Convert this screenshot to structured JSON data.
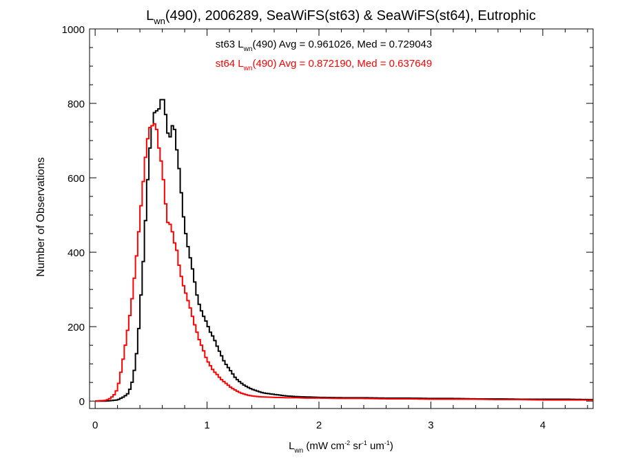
{
  "chart_data": {
    "type": "line",
    "title": {
      "prefix": "L",
      "sub": "wn",
      "rest": "(490), 2006289, SeaWiFS(st63) & SeaWiFS(st64), Eutrophic"
    },
    "xlabel": {
      "prefix": "L",
      "sub": "wn",
      "parts": [
        {
          "t": " (mW cm",
          "s": "n"
        },
        {
          "t": "-2",
          "s": "sup"
        },
        {
          "t": " sr",
          "s": "n"
        },
        {
          "t": "-1",
          "s": "sup"
        },
        {
          "t": " um",
          "s": "n"
        },
        {
          "t": "-1",
          "s": "sup"
        },
        {
          "t": ")",
          "s": "n"
        }
      ]
    },
    "ylabel": "Number of Observations",
    "xlim": [
      -0.05,
      4.45
    ],
    "ylim": [
      -20,
      1000
    ],
    "x_ticks": [
      0,
      1,
      2,
      3,
      4
    ],
    "x_ticklabels": [
      "0",
      "1",
      "2",
      "3",
      "4"
    ],
    "y_ticks": [
      0,
      200,
      400,
      600,
      800,
      1000
    ],
    "y_ticklabels": [
      "0",
      "200",
      "400",
      "600",
      "800",
      "1000"
    ],
    "x_minor_step": 0.2,
    "y_minor_step": 50,
    "grid": false,
    "bin_width": 0.02,
    "annotations": [
      {
        "label": "st63",
        "prefix": "st63 L",
        "sub": "wn",
        "rest": "(490) Avg = 0.961026, Med = 0.729043",
        "color": "#000000"
      },
      {
        "label": "st64",
        "prefix": "st64 L",
        "sub": "wn",
        "rest": "(490) Avg = 0.872190, Med = 0.637649",
        "color": "#ff0000"
      }
    ],
    "series": [
      {
        "key": "st63",
        "color": "#000000",
        "x": [
          0.0,
          0.1,
          0.2,
          0.26,
          0.3,
          0.34,
          0.38,
          0.4,
          0.42,
          0.44,
          0.46,
          0.48,
          0.5,
          0.52,
          0.54,
          0.56,
          0.58,
          0.6,
          0.62,
          0.64,
          0.66,
          0.68,
          0.7,
          0.72,
          0.74,
          0.76,
          0.78,
          0.8,
          0.82,
          0.84,
          0.86,
          0.88,
          0.9,
          0.92,
          0.94,
          0.96,
          0.98,
          1.0,
          1.02,
          1.04,
          1.06,
          1.08,
          1.1,
          1.12,
          1.14,
          1.16,
          1.18,
          1.2,
          1.22,
          1.24,
          1.26,
          1.28,
          1.3,
          1.32,
          1.36,
          1.4,
          1.45,
          1.5,
          1.6,
          1.7,
          1.8,
          1.9,
          2.0,
          2.2,
          2.4,
          2.6,
          2.8,
          3.0,
          3.2,
          3.4,
          3.6,
          3.8,
          4.0,
          4.2,
          4.44
        ],
        "y": [
          0,
          0,
          3,
          12,
          22,
          60,
          150,
          240,
          330,
          420,
          550,
          640,
          720,
          760,
          790,
          770,
          800,
          820,
          800,
          740,
          700,
          720,
          760,
          700,
          650,
          600,
          520,
          470,
          430,
          400,
          370,
          340,
          300,
          270,
          250,
          235,
          220,
          210,
          190,
          180,
          170,
          155,
          140,
          128,
          115,
          102,
          95,
          85,
          78,
          68,
          60,
          55,
          50,
          45,
          38,
          32,
          27,
          22,
          18,
          14,
          12,
          11,
          10,
          9,
          9,
          8,
          8,
          7,
          7,
          6,
          6,
          5,
          5,
          5,
          4
        ]
      },
      {
        "key": "st64",
        "color": "#ff0000",
        "x": [
          0.0,
          0.1,
          0.14,
          0.18,
          0.2,
          0.22,
          0.24,
          0.26,
          0.28,
          0.3,
          0.32,
          0.34,
          0.36,
          0.38,
          0.4,
          0.42,
          0.44,
          0.46,
          0.48,
          0.5,
          0.52,
          0.54,
          0.56,
          0.58,
          0.6,
          0.62,
          0.64,
          0.66,
          0.68,
          0.7,
          0.72,
          0.74,
          0.76,
          0.78,
          0.8,
          0.82,
          0.84,
          0.86,
          0.88,
          0.9,
          0.92,
          0.94,
          0.96,
          0.98,
          1.0,
          1.02,
          1.04,
          1.06,
          1.08,
          1.1,
          1.12,
          1.14,
          1.16,
          1.18,
          1.2,
          1.22,
          1.24,
          1.26,
          1.28,
          1.3,
          1.34,
          1.38,
          1.42,
          1.5,
          1.6,
          1.7,
          1.8,
          1.9,
          2.0,
          2.2,
          2.4,
          2.6,
          2.8,
          3.0,
          3.2,
          3.4,
          3.6,
          3.8,
          4.0,
          4.2,
          4.44
        ],
        "y": [
          0,
          2,
          8,
          20,
          35,
          60,
          95,
          130,
          170,
          210,
          250,
          300,
          360,
          420,
          490,
          560,
          620,
          690,
          720,
          750,
          730,
          760,
          700,
          660,
          630,
          560,
          500,
          460,
          490,
          420,
          430,
          380,
          350,
          320,
          300,
          280,
          260,
          240,
          215,
          195,
          175,
          155,
          145,
          125,
          110,
          100,
          90,
          80,
          75,
          68,
          60,
          55,
          50,
          45,
          40,
          35,
          32,
          28,
          25,
          22,
          18,
          15,
          13,
          11,
          10,
          9,
          9,
          8,
          8,
          7,
          7,
          6,
          6,
          5,
          5,
          5,
          4,
          4,
          3,
          3,
          3
        ]
      }
    ]
  }
}
